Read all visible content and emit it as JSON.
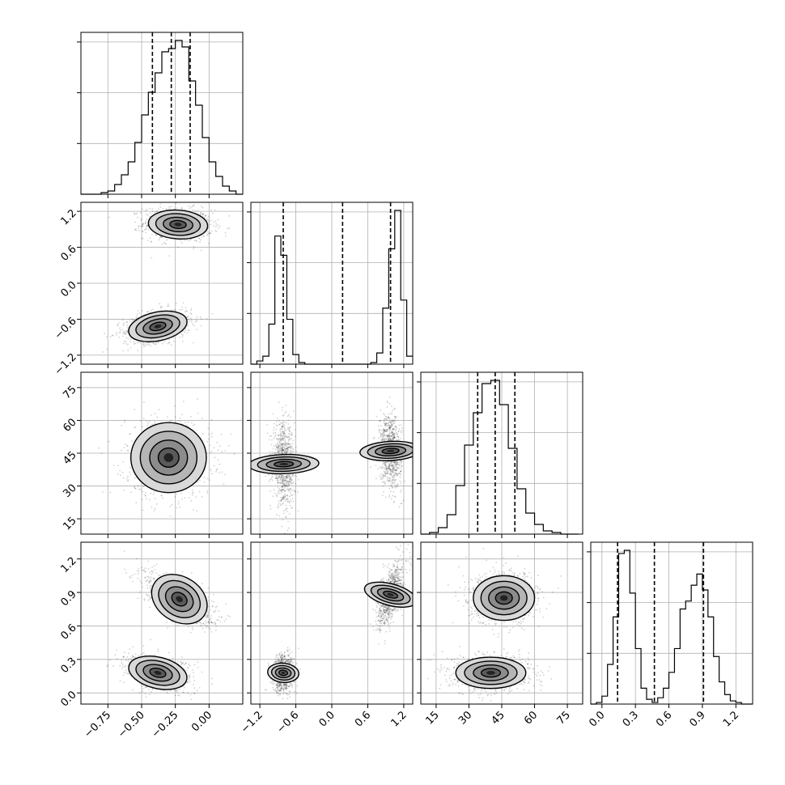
{
  "chart_data": {
    "type": "corner",
    "description_note": "",
    "grid": true,
    "axes": {
      "p1": {
        "range": [
          -0.95,
          0.25
        ],
        "ticks": [
          -0.75,
          -0.5,
          -0.25,
          0.0
        ],
        "tick_labels": [
          "−0.75",
          "−0.50",
          "−0.25",
          "0.00"
        ]
      },
      "p2": {
        "range": [
          -1.35,
          1.35
        ],
        "ticks": [
          -1.2,
          -0.6,
          0.0,
          0.6,
          1.2
        ],
        "tick_labels": [
          "−1.2",
          "−0.6",
          "0.0",
          "0.6",
          "1.2"
        ]
      },
      "p3": {
        "range": [
          8,
          82
        ],
        "ticks": [
          15,
          30,
          45,
          60,
          75
        ],
        "tick_labels": [
          "15",
          "30",
          "45",
          "60",
          "75"
        ]
      },
      "p4": {
        "range": [
          -0.1,
          1.35
        ],
        "ticks": [
          0.0,
          0.3,
          0.6,
          0.9,
          1.2
        ],
        "tick_labels": [
          "0.0",
          "0.3",
          "0.6",
          "0.9",
          "1.2"
        ]
      }
    },
    "histograms": [
      {
        "param": "p1",
        "bin_edges": [
          -0.95,
          -0.9,
          -0.85,
          -0.8,
          -0.75,
          -0.7,
          -0.65,
          -0.6,
          -0.55,
          -0.5,
          -0.45,
          -0.4,
          -0.35,
          -0.3,
          -0.25,
          -0.2,
          -0.15,
          -0.1,
          -0.05,
          0.0,
          0.05,
          0.1,
          0.15,
          0.2,
          0.25
        ],
        "counts": [
          0,
          0,
          0,
          0.01,
          0.02,
          0.06,
          0.12,
          0.2,
          0.32,
          0.49,
          0.63,
          0.75,
          0.88,
          0.9,
          0.95,
          0.91,
          0.7,
          0.55,
          0.35,
          0.2,
          0.11,
          0.05,
          0.02,
          0
        ],
        "quantiles": [
          -0.42,
          -0.28,
          -0.14
        ]
      },
      {
        "param": "p2",
        "bin_edges": [
          -1.35,
          -1.25,
          -1.15,
          -1.05,
          -0.95,
          -0.85,
          -0.75,
          -0.65,
          -0.55,
          -0.45,
          -0.35,
          -0.25,
          -0.15,
          -0.05,
          0.05,
          0.15,
          0.25,
          0.35,
          0.45,
          0.55,
          0.65,
          0.75,
          0.85,
          0.95,
          1.05,
          1.15,
          1.25,
          1.35
        ],
        "counts": [
          0,
          0.02,
          0.05,
          0.25,
          0.8,
          0.68,
          0.28,
          0.06,
          0.01,
          0,
          0,
          0,
          0,
          0,
          0,
          0,
          0,
          0,
          0,
          0,
          0.01,
          0.07,
          0.35,
          0.72,
          0.96,
          0.4,
          0.05
        ],
        "quantiles": [
          -0.81,
          0.18,
          0.98
        ]
      },
      {
        "param": "p3",
        "bin_edges": [
          8,
          12,
          16,
          20,
          24,
          28,
          32,
          36,
          40,
          44,
          48,
          52,
          56,
          60,
          64,
          68,
          72,
          76,
          80
        ],
        "counts": [
          0,
          0.01,
          0.04,
          0.12,
          0.3,
          0.55,
          0.75,
          0.93,
          0.95,
          0.8,
          0.53,
          0.28,
          0.13,
          0.06,
          0.02,
          0.01,
          0,
          0
        ],
        "quantiles": [
          34,
          42,
          51
        ]
      },
      {
        "param": "p4",
        "bin_edges": [
          -0.1,
          -0.05,
          0.0,
          0.05,
          0.1,
          0.15,
          0.2,
          0.25,
          0.3,
          0.35,
          0.4,
          0.45,
          0.5,
          0.55,
          0.6,
          0.65,
          0.7,
          0.75,
          0.8,
          0.85,
          0.9,
          0.95,
          1.0,
          1.05,
          1.1,
          1.15,
          1.2,
          1.25,
          1.3,
          1.35
        ],
        "counts": [
          0,
          0.01,
          0.05,
          0.25,
          0.55,
          0.95,
          0.97,
          0.7,
          0.35,
          0.1,
          0.03,
          0.01,
          0.04,
          0.1,
          0.2,
          0.35,
          0.6,
          0.65,
          0.75,
          0.82,
          0.72,
          0.55,
          0.3,
          0.14,
          0.06,
          0.02,
          0.01,
          0,
          0
        ],
        "quantiles": [
          0.14,
          0.47,
          0.91
        ]
      }
    ],
    "joint_plots": [
      {
        "x": "p1",
        "y": "p2",
        "modes": [
          {
            "cx": -0.23,
            "cy": 0.98,
            "sx": 0.11,
            "sy": 0.12,
            "rho": -0.1,
            "weight": 1.0
          },
          {
            "cx": -0.38,
            "cy": -0.72,
            "sx": 0.11,
            "sy": 0.12,
            "rho": 0.35,
            "weight": 1.0
          }
        ]
      },
      {
        "x": "p1",
        "y": "p3",
        "modes": [
          {
            "cx": -0.3,
            "cy": 43,
            "sx": 0.14,
            "sy": 8,
            "rho": 0.0,
            "weight": 1.0
          }
        ]
      },
      {
        "x": "p2",
        "y": "p3",
        "modes": [
          {
            "cx": -0.8,
            "cy": 40,
            "sx": 0.08,
            "sy": 8,
            "rho": -0.1,
            "weight": 1.0
          },
          {
            "cx": 0.98,
            "cy": 46,
            "sx": 0.08,
            "sy": 7,
            "rho": -0.15,
            "weight": 1.0
          }
        ]
      },
      {
        "x": "p1",
        "y": "p4",
        "modes": [
          {
            "cx": -0.22,
            "cy": 0.84,
            "sx": 0.11,
            "sy": 0.1,
            "rho": -0.65,
            "weight": 1.0
          },
          {
            "cx": -0.38,
            "cy": 0.18,
            "sx": 0.11,
            "sy": 0.07,
            "rho": -0.35,
            "weight": 1.0
          }
        ]
      },
      {
        "x": "p2",
        "y": "p4",
        "modes": [
          {
            "cx": 0.98,
            "cy": 0.88,
            "sx": 0.09,
            "sy": 0.12,
            "rho": 0.6,
            "weight": 1.0
          },
          {
            "cx": -0.81,
            "cy": 0.18,
            "sx": 0.08,
            "sy": 0.07,
            "rho": 0.1,
            "weight": 1.0
          }
        ]
      },
      {
        "x": "p3",
        "y": "p4",
        "modes": [
          {
            "cx": 46,
            "cy": 0.85,
            "sx": 7,
            "sy": 0.1,
            "rho": 0.0,
            "weight": 1.0
          },
          {
            "cx": 40,
            "cy": 0.18,
            "sx": 8,
            "sy": 0.07,
            "rho": 0.0,
            "weight": 1.0
          }
        ]
      }
    ]
  }
}
